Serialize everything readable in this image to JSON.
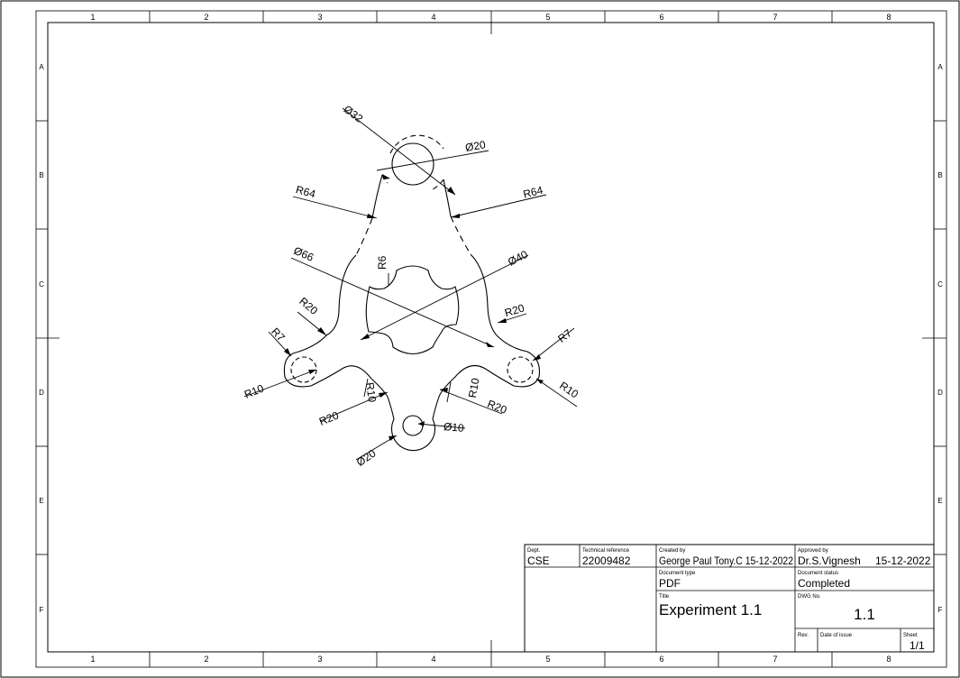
{
  "drawing": {
    "zones_columns": [
      "1",
      "2",
      "3",
      "4",
      "5",
      "6",
      "7",
      "8"
    ],
    "zones_rows": [
      "A",
      "B",
      "C",
      "D",
      "E",
      "F"
    ],
    "dimensions": [
      "Ø32",
      "Ø20",
      "R64",
      "R64",
      "Ø66",
      "R6",
      "Ø40",
      "R20",
      "R20",
      "R7",
      "R7",
      "R10",
      "R10",
      "R10",
      "R10",
      "R20",
      "R20",
      "Ø20",
      "Ø10"
    ]
  },
  "title_block": {
    "dept_label": "Dept.",
    "dept_value": "CSE",
    "techref_label": "Technical reference",
    "techref_value": "22009482",
    "created_label": "Created by",
    "created_value": "George Paul Tony.C 15-12-2022",
    "approved_label": "Approved by",
    "approved_value": "Dr.S.Vignesh",
    "approved_date": "15-12-2022",
    "doctype_label": "Document type",
    "doctype_value": "PDF",
    "docstatus_label": "Document status",
    "docstatus_value": "Completed",
    "title_label": "Title",
    "title_value": "Experiment 1.1",
    "dwgno_label": "DWG No.",
    "dwgno_value": "1.1",
    "rev_label": "Rev.",
    "issue_label": "Date of issue",
    "sheet_label": "Sheet",
    "sheet_value": "1/1"
  }
}
